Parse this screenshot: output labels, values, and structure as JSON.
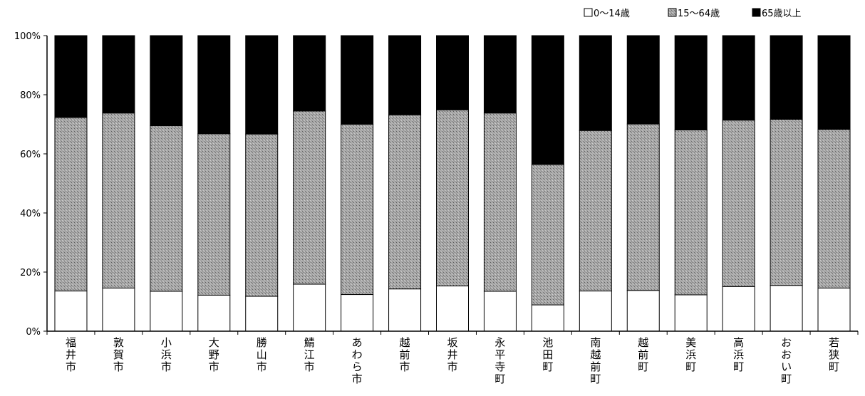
{
  "chart_data": {
    "type": "bar",
    "stacked": true,
    "categories": [
      "福井市",
      "敦賀市",
      "小浜市",
      "大野市",
      "勝山市",
      "鯖江市",
      "あわら市",
      "越前市",
      "坂井市",
      "永平寺町",
      "池田町",
      "南越前町",
      "越前町",
      "美浜町",
      "高浜町",
      "おおい町",
      "若狭町"
    ],
    "series": [
      {
        "name": "0〜14歳",
        "color": "#ffffff",
        "values": [
          13.6,
          14.6,
          13.5,
          12.2,
          11.8,
          15.9,
          12.4,
          14.3,
          15.3,
          13.5,
          8.9,
          13.6,
          13.8,
          12.3,
          15.1,
          15.5,
          14.6
        ]
      },
      {
        "name": "15〜64歳",
        "color": "#9a9a9a",
        "values": [
          58.7,
          59.2,
          56.0,
          54.6,
          54.9,
          58.6,
          57.6,
          58.9,
          59.6,
          60.3,
          47.5,
          54.3,
          56.3,
          55.8,
          56.3,
          56.2,
          53.7
        ]
      },
      {
        "name": "65歳以上",
        "color": "#000000",
        "values": [
          27.7,
          26.2,
          30.5,
          33.2,
          33.3,
          25.5,
          30.0,
          26.8,
          25.1,
          26.2,
          43.6,
          32.1,
          29.9,
          31.9,
          28.6,
          28.3,
          31.7
        ]
      }
    ],
    "yticks": [
      "0%",
      "20%",
      "40%",
      "60%",
      "80%",
      "100%"
    ],
    "ylim": [
      0,
      100
    ],
    "legend": {
      "position": "top-right",
      "items": [
        "0〜14歳",
        "15〜64歳",
        "65歳以上"
      ]
    },
    "grid": false
  }
}
